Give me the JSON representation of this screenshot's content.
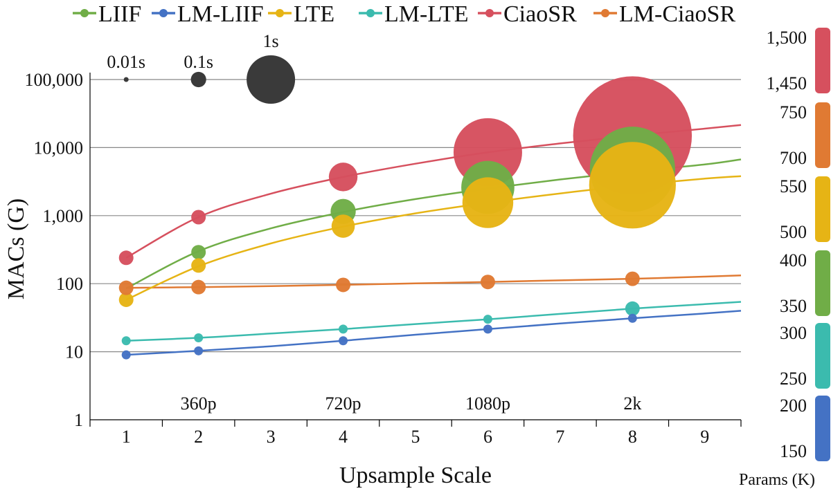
{
  "chart_data": {
    "type": "scatter",
    "xlabel": "Upsample Scale",
    "ylabel": "MACs (G)",
    "xlim": [
      0.5,
      9.5
    ],
    "ylim": [
      1,
      100000
    ],
    "y_scale": "log",
    "x_ticks": [
      "1",
      "2",
      "3",
      "4",
      "5",
      "6",
      "7",
      "8",
      "9"
    ],
    "y_ticks": [
      "1",
      "10",
      "100",
      "1,000",
      "10,000",
      "100,000"
    ],
    "resolution_labels": [
      {
        "x": 2,
        "label": "360p"
      },
      {
        "x": 4,
        "label": "720p"
      },
      {
        "x": 6,
        "label": "1080p"
      },
      {
        "x": 8,
        "label": "2k"
      }
    ],
    "time_legend": [
      {
        "x": 1,
        "label": "0.01s",
        "time": 0.01
      },
      {
        "x": 2,
        "label": "0.1s",
        "time": 0.1
      },
      {
        "x": 3,
        "label": "1s",
        "time": 1
      }
    ],
    "grid": true,
    "legend_position": "top",
    "series": [
      {
        "name": "LIIF",
        "color": "#70AD47",
        "params_k": 355,
        "points": [
          {
            "x": 2,
            "y": 290,
            "t": 0.017
          },
          {
            "x": 4,
            "y": 1150,
            "t": 0.27
          },
          {
            "x": 6,
            "y": 2600,
            "t": 1.2
          },
          {
            "x": 8,
            "y": 4800,
            "t": 3.1
          }
        ],
        "curve": [
          [
            1,
            85
          ],
          [
            2,
            300
          ],
          [
            3,
            650
          ],
          [
            4,
            1130
          ],
          [
            5,
            1750
          ],
          [
            6,
            2500
          ],
          [
            7,
            3400
          ],
          [
            8,
            4450
          ],
          [
            9,
            5650
          ],
          [
            9.5,
            6700
          ]
        ]
      },
      {
        "name": "LM-LIIF",
        "color": "#4472C4",
        "params_k": 170,
        "points": [
          {
            "x": 1,
            "y": 9
          },
          {
            "x": 2,
            "y": 10.3
          },
          {
            "x": 4,
            "y": 14.5
          },
          {
            "x": 6,
            "y": 21.5
          },
          {
            "x": 8,
            "y": 31
          }
        ],
        "curve": [
          [
            1,
            9
          ],
          [
            2,
            10.3
          ],
          [
            3,
            12
          ],
          [
            4,
            14.5
          ],
          [
            5,
            17.8
          ],
          [
            6,
            21.5
          ],
          [
            7,
            26
          ],
          [
            8,
            31
          ],
          [
            9,
            36.5
          ],
          [
            9.5,
            40
          ]
        ]
      },
      {
        "name": "LTE",
        "color": "#E6B415",
        "params_k": 525,
        "points": [
          {
            "x": 1,
            "y": 58,
            "t": 0.001
          },
          {
            "x": 2,
            "y": 185,
            "t": 0.015
          },
          {
            "x": 4,
            "y": 700,
            "t": 0.23
          },
          {
            "x": 6,
            "y": 1550,
            "t": 1.1
          },
          {
            "x": 8,
            "y": 2800,
            "t": 3.2
          }
        ],
        "curve": [
          [
            1,
            58
          ],
          [
            2,
            180
          ],
          [
            3,
            390
          ],
          [
            4,
            690
          ],
          [
            5,
            1080
          ],
          [
            6,
            1550
          ],
          [
            7,
            2120
          ],
          [
            8,
            2780
          ],
          [
            9,
            3500
          ],
          [
            9.5,
            3800
          ]
        ]
      },
      {
        "name": "LM-LTE",
        "color": "#3BBBAE",
        "params_k": 275,
        "points": [
          {
            "x": 1,
            "y": 14.5
          },
          {
            "x": 2,
            "y": 16
          },
          {
            "x": 4,
            "y": 21.5
          },
          {
            "x": 6,
            "y": 30
          },
          {
            "x": 8,
            "y": 43,
            "t": 0.0015
          }
        ],
        "curve": [
          [
            1,
            14.5
          ],
          [
            2,
            16
          ],
          [
            3,
            18.5
          ],
          [
            4,
            21.5
          ],
          [
            5,
            25.5
          ],
          [
            6,
            30
          ],
          [
            7,
            36
          ],
          [
            8,
            43
          ],
          [
            9,
            50
          ],
          [
            9.5,
            54
          ]
        ]
      },
      {
        "name": "CiaoSR",
        "color": "#D6505E",
        "params_k": 1475,
        "points": [
          {
            "x": 1,
            "y": 240,
            "t": 0.001
          },
          {
            "x": 2,
            "y": 950,
            "t": 0.02
          },
          {
            "x": 4,
            "y": 3700,
            "t": 0.35
          },
          {
            "x": 6,
            "y": 8500,
            "t": 2.0
          },
          {
            "x": 8,
            "y": 15000,
            "t": 6.0
          }
        ],
        "curve": [
          [
            1,
            240
          ],
          [
            2,
            950
          ],
          [
            3,
            2100
          ],
          [
            4,
            3700
          ],
          [
            5,
            5800
          ],
          [
            6,
            8500
          ],
          [
            7,
            11500
          ],
          [
            8,
            15000
          ],
          [
            9,
            19000
          ],
          [
            9.5,
            21500
          ]
        ]
      },
      {
        "name": "LM-CiaoSR",
        "color": "#E07A33",
        "params_k": 725,
        "points": [
          {
            "x": 1,
            "y": 87,
            "t": 0.001
          },
          {
            "x": 2,
            "y": 89,
            "t": 0.002
          },
          {
            "x": 4,
            "y": 96,
            "t": 0.003
          },
          {
            "x": 6,
            "y": 106,
            "t": 0.005
          },
          {
            "x": 8,
            "y": 118,
            "t": 0.01
          }
        ],
        "curve": [
          [
            1,
            87
          ],
          [
            2,
            89
          ],
          [
            3,
            92
          ],
          [
            4,
            96
          ],
          [
            5,
            101
          ],
          [
            6,
            106
          ],
          [
            7,
            112
          ],
          [
            8,
            118
          ],
          [
            9,
            127
          ],
          [
            9.5,
            132
          ]
        ]
      }
    ],
    "params_colorbar": {
      "title": "Params (K)",
      "segments": [
        {
          "series": "CiaoSR",
          "color": "#D6505E",
          "ticks": [
            "1,500",
            "1,450"
          ]
        },
        {
          "series": "LM-CiaoSR",
          "color": "#E07A33",
          "ticks": [
            "750",
            "700"
          ]
        },
        {
          "series": "LTE",
          "color": "#E6B415",
          "ticks": [
            "550",
            "500"
          ]
        },
        {
          "series": "LIIF",
          "color": "#70AD47",
          "ticks": [
            "400",
            "350"
          ]
        },
        {
          "series": "LM-LTE",
          "color": "#3BBBAE",
          "ticks": [
            "300",
            "250"
          ]
        },
        {
          "series": "LM-LIIF",
          "color": "#4472C4",
          "ticks": [
            "200",
            "150"
          ]
        }
      ]
    },
    "time_marker_color": "#3A3A3A"
  }
}
